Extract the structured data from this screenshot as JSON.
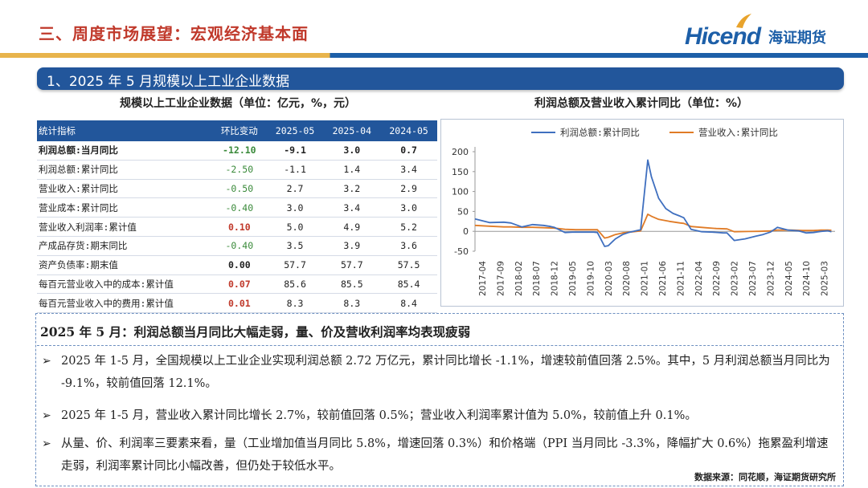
{
  "header": {
    "section_title": "三、周度市场展望：宏观经济基本面",
    "logo_en": "Hicend",
    "logo_cn": "海证期货"
  },
  "banner": {
    "title": "1、2025 年 5 月规模以上工业企业数据"
  },
  "table": {
    "title": "规模以上工业企业数据（单位：亿元，%，元）",
    "headers": [
      "统计指标",
      "环比变动",
      "2025-05",
      "2025-04",
      "2024-05"
    ],
    "rows": [
      {
        "label": "利润总额:当月同比",
        "change": "-12.10",
        "v1": "-9.1",
        "v2": "3.0",
        "v3": "0.7",
        "change_color": "#3a8a3a"
      },
      {
        "label": "利润总额:累计同比",
        "change": "-2.50",
        "v1": "-1.1",
        "v2": "1.4",
        "v3": "3.4",
        "change_color": "#3a8a3a"
      },
      {
        "label": "营业收入:累计同比",
        "change": "-0.50",
        "v1": "2.7",
        "v2": "3.2",
        "v3": "2.9",
        "change_color": "#3a8a3a"
      },
      {
        "label": "营业成本:累计同比",
        "change": "-0.40",
        "v1": "3.0",
        "v2": "3.4",
        "v3": "3.0",
        "change_color": "#3a8a3a"
      },
      {
        "label": "营业收入利润率:累计值",
        "change": "0.10",
        "v1": "5.0",
        "v2": "4.9",
        "v3": "5.2",
        "change_color": "#c0392b"
      },
      {
        "label": "产成品存货:期末同比",
        "change": "-0.40",
        "v1": "3.5",
        "v2": "3.9",
        "v3": "3.6",
        "change_color": "#3a8a3a"
      },
      {
        "label": "资产负债率:期末值",
        "change": "0.00",
        "v1": "57.7",
        "v2": "57.7",
        "v3": "57.5",
        "change_color": "#222222"
      },
      {
        "label": "每百元营业收入中的成本:累计值",
        "change": "0.07",
        "v1": "85.6",
        "v2": "85.5",
        "v3": "85.4",
        "change_color": "#c0392b"
      },
      {
        "label": "每百元营业收入中的费用:累计值",
        "change": "0.01",
        "v1": "8.3",
        "v2": "8.3",
        "v3": "8.4",
        "change_color": "#c0392b"
      }
    ]
  },
  "chart_data": {
    "type": "line",
    "title": "利润总额及营业收入累计同比（单位：%）",
    "ylim": [
      -50,
      200
    ],
    "y_ticks": [
      -50,
      0,
      50,
      100,
      150,
      200
    ],
    "x_ticks": [
      "2017-04",
      "2017-09",
      "2018-02",
      "2018-07",
      "2018-12",
      "2019-05",
      "2019-10",
      "2020-03",
      "2020-08",
      "2021-01",
      "2021-06",
      "2021-11",
      "2022-04",
      "2022-09",
      "2023-02",
      "2023-07",
      "2023-12",
      "2024-05",
      "2024-10",
      "2025-03"
    ],
    "legend_position": "top",
    "grid": false,
    "series": [
      {
        "name": "利润总额:累计同比",
        "color": "#3f6fbf",
        "points": [
          [
            "2017-02",
            31
          ],
          [
            "2017-06",
            22
          ],
          [
            "2017-10",
            23
          ],
          [
            "2017-12",
            21
          ],
          [
            "2018-03",
            11
          ],
          [
            "2018-06",
            17
          ],
          [
            "2018-09",
            15
          ],
          [
            "2018-11",
            12
          ],
          [
            "2018-12",
            10
          ],
          [
            "2019-03",
            -3
          ],
          [
            "2019-05",
            -2
          ],
          [
            "2019-08",
            -2
          ],
          [
            "2019-11",
            -2
          ],
          [
            "2019-12",
            -3
          ],
          [
            "2020-02",
            -38
          ],
          [
            "2020-03",
            -36
          ],
          [
            "2020-05",
            -19
          ],
          [
            "2020-07",
            -8
          ],
          [
            "2020-09",
            -2
          ],
          [
            "2020-11",
            2
          ],
          [
            "2020-12",
            4
          ],
          [
            "2021-02",
            179
          ],
          [
            "2021-03",
            137
          ],
          [
            "2021-05",
            83
          ],
          [
            "2021-07",
            57
          ],
          [
            "2021-09",
            45
          ],
          [
            "2021-11",
            38
          ],
          [
            "2021-12",
            34
          ],
          [
            "2022-02",
            5
          ],
          [
            "2022-05",
            -1
          ],
          [
            "2022-08",
            -2
          ],
          [
            "2022-11",
            -4
          ],
          [
            "2022-12",
            -4
          ],
          [
            "2023-02",
            -23
          ],
          [
            "2023-05",
            -19
          ],
          [
            "2023-08",
            -12
          ],
          [
            "2023-10",
            -8
          ],
          [
            "2023-12",
            -2
          ],
          [
            "2024-02",
            10
          ],
          [
            "2024-05",
            3
          ],
          [
            "2024-08",
            1
          ],
          [
            "2024-10",
            -4
          ],
          [
            "2024-12",
            -3
          ],
          [
            "2025-02",
            -0.3
          ],
          [
            "2025-04",
            1.4
          ],
          [
            "2025-05",
            -1.1
          ]
        ]
      },
      {
        "name": "营业收入:累计同比",
        "color": "#e07b26",
        "points": [
          [
            "2017-02",
            15
          ],
          [
            "2017-06",
            13
          ],
          [
            "2017-10",
            11
          ],
          [
            "2017-12",
            11
          ],
          [
            "2018-03",
            10
          ],
          [
            "2018-06",
            10
          ],
          [
            "2018-09",
            9
          ],
          [
            "2018-12",
            8
          ],
          [
            "2019-03",
            5
          ],
          [
            "2019-06",
            4
          ],
          [
            "2019-09",
            4
          ],
          [
            "2019-12",
            4
          ],
          [
            "2020-02",
            -17
          ],
          [
            "2020-03",
            -15
          ],
          [
            "2020-05",
            -8
          ],
          [
            "2020-07",
            -4
          ],
          [
            "2020-09",
            -2
          ],
          [
            "2020-12",
            1
          ],
          [
            "2021-02",
            43
          ],
          [
            "2021-03",
            38
          ],
          [
            "2021-05",
            30
          ],
          [
            "2021-08",
            25
          ],
          [
            "2021-11",
            21
          ],
          [
            "2021-12",
            20
          ],
          [
            "2022-02",
            12
          ],
          [
            "2022-06",
            9
          ],
          [
            "2022-09",
            7
          ],
          [
            "2022-12",
            6
          ],
          [
            "2023-02",
            -1
          ],
          [
            "2023-06",
            -0.5
          ],
          [
            "2023-09",
            0
          ],
          [
            "2023-12",
            1
          ],
          [
            "2024-02",
            3
          ],
          [
            "2024-06",
            3
          ],
          [
            "2024-09",
            2
          ],
          [
            "2024-12",
            2
          ],
          [
            "2025-02",
            3
          ],
          [
            "2025-04",
            3.2
          ],
          [
            "2025-05",
            2.7
          ]
        ]
      }
    ]
  },
  "summary": {
    "headline": "2025 年 5 月：利润总额当月同比大幅走弱，量、价及营收利润率均表现疲弱",
    "bullets": [
      "2025 年 1-5 月，全国规模以上工业企业实现利润总额 2.72 万亿元，累计同比增长 -1.1%，增速较前值回落 2.5%。其中，5 月利润总额当月同比为 -9.1%，较前值回落 12.1%。",
      "2025 年 1-5 月，营业收入累计同比增长 2.7%，较前值回落 0.5%；营业收入利润率累计值为 5.0%，较前值上升 0.1%。",
      "从量、价、利润率三要素来看，量（工业增加值当月同比 5.8%，增速回落 0.3%）和价格端（PPI 当月同比 -3.3%，降幅扩大 0.6%）拖累盈利增速走弱，利润率累计同比小幅改善，但仍处于较低水平。"
    ],
    "bullet_symbol": "➢"
  },
  "source": "数据来源：同花顺，海证期货研究所"
}
